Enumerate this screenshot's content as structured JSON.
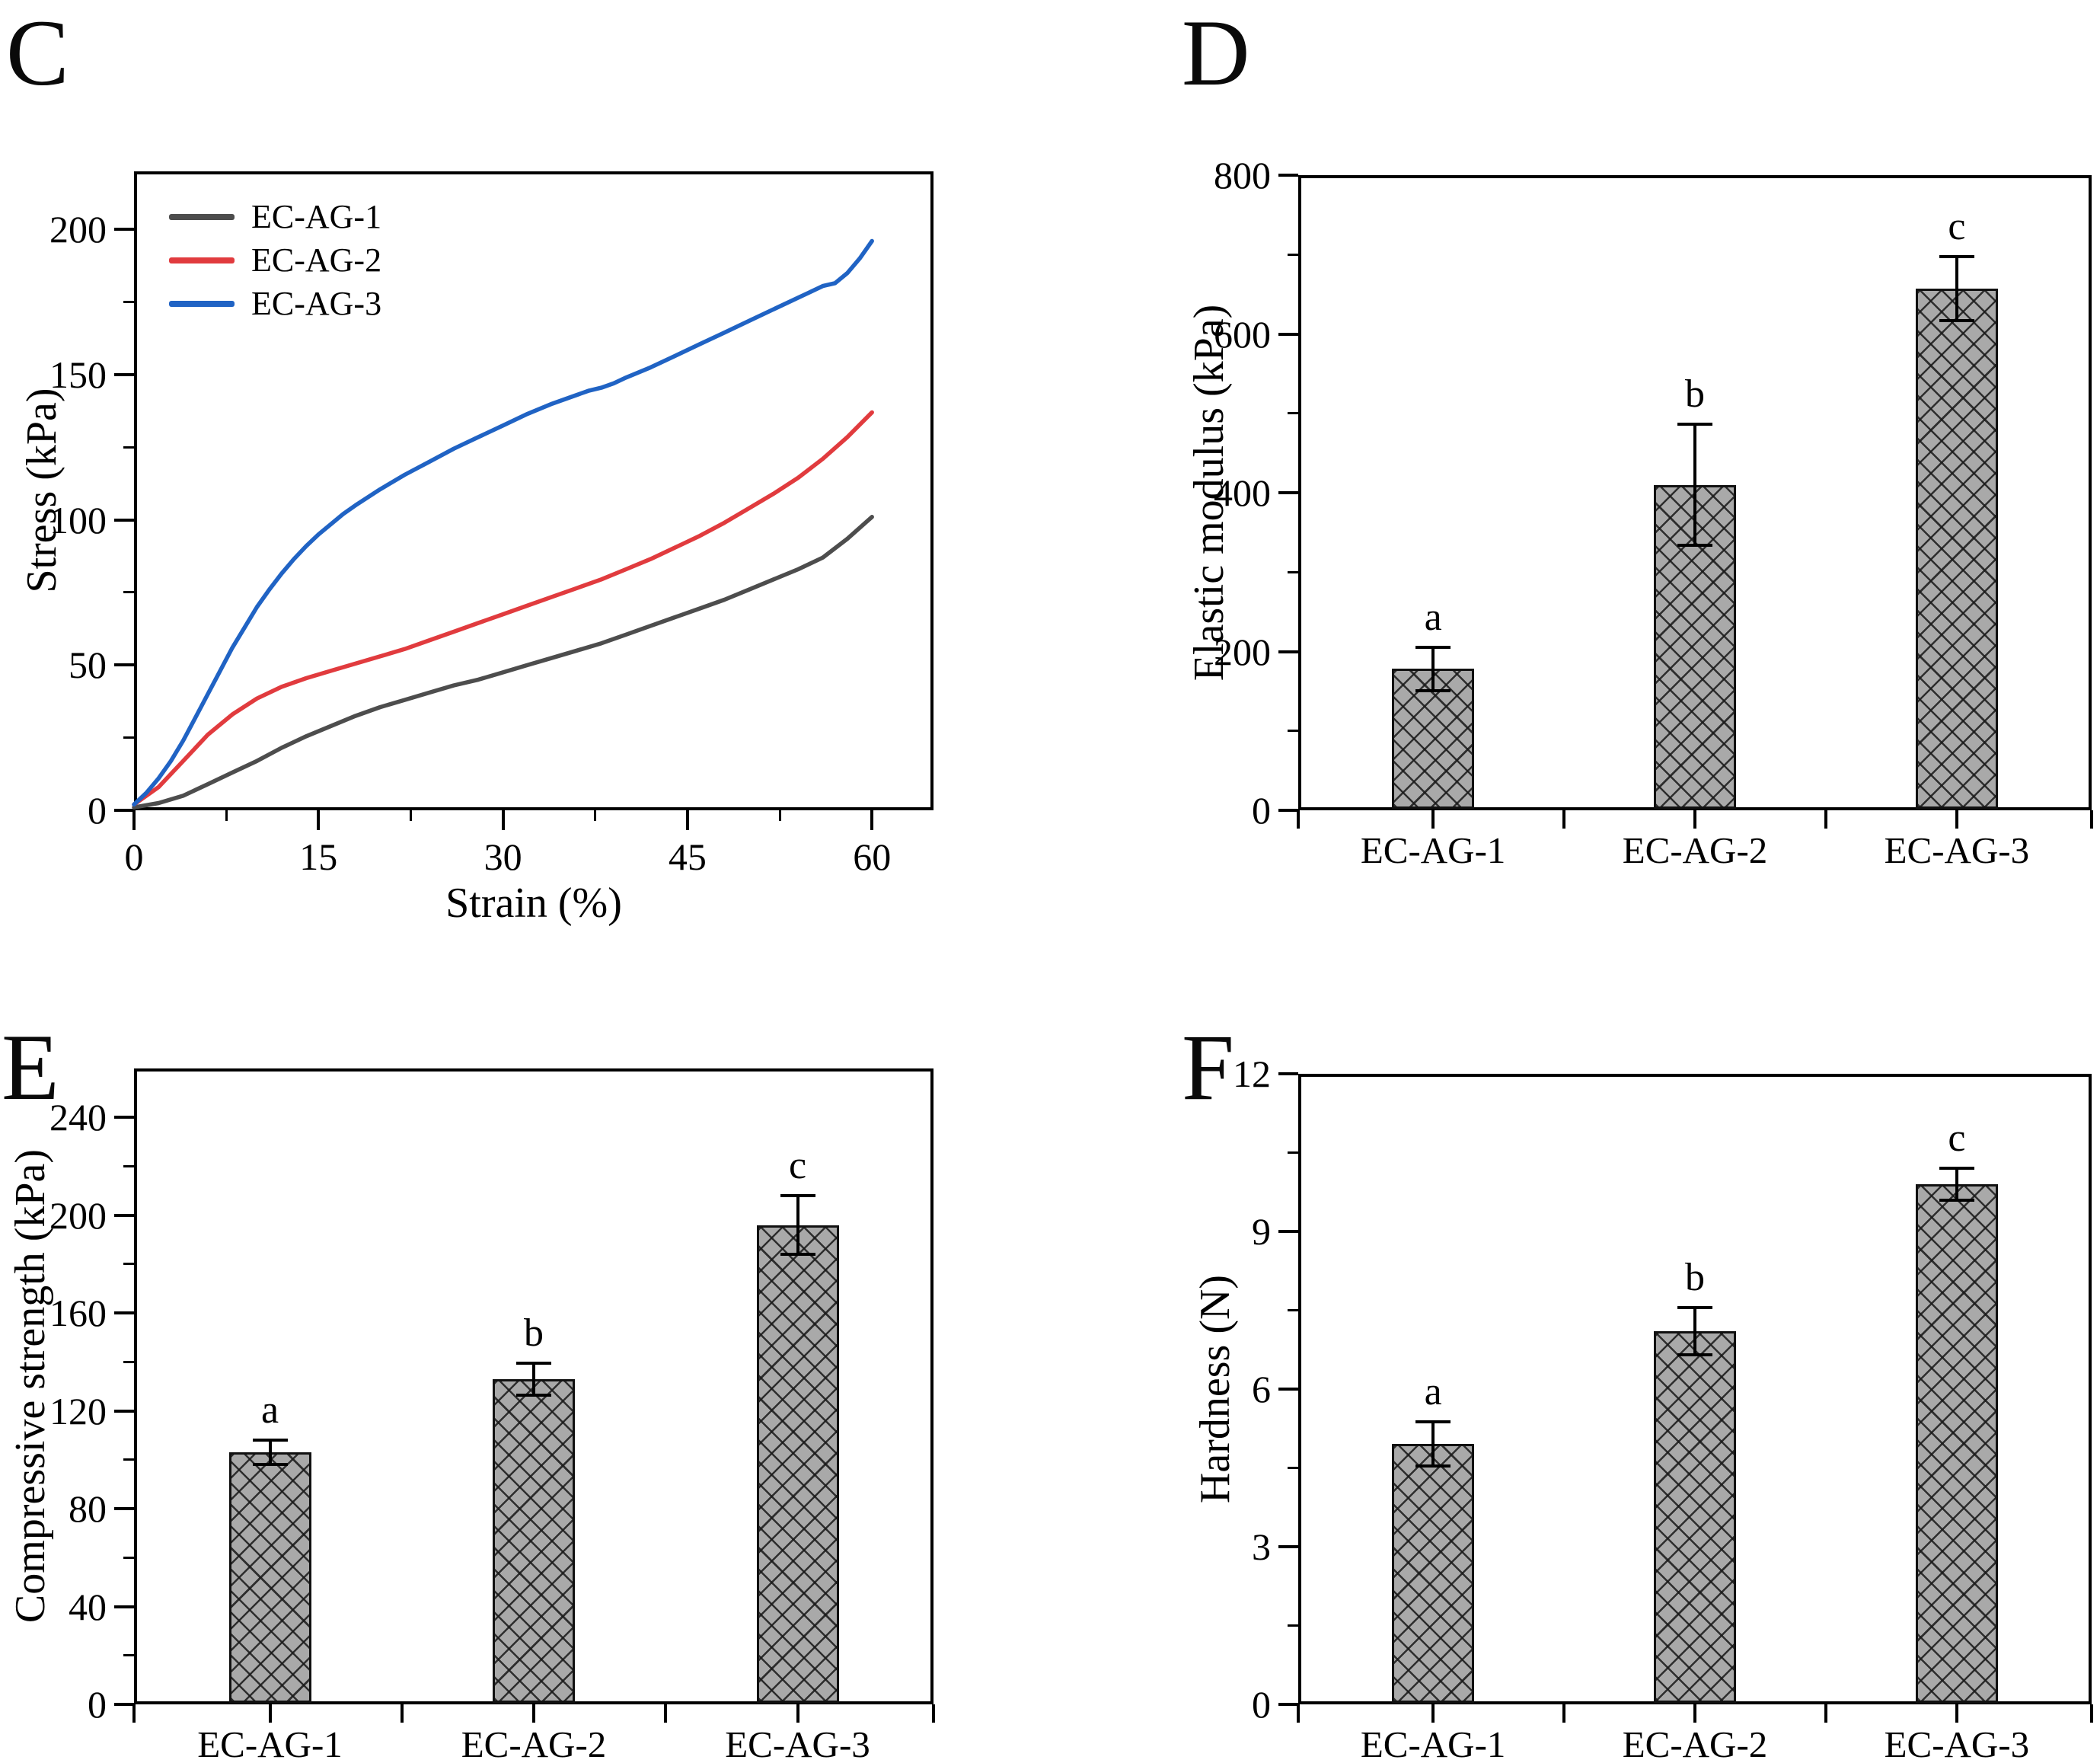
{
  "figure_title": "",
  "accent_colors": {
    "series_black": "#4d4d4d",
    "series_red": "#e13b3e",
    "series_blue": "#2063c4",
    "bar_fill": "#a9a9a9",
    "bar_hatch": "#191919",
    "axis": "#000000"
  },
  "chart_data": [
    {
      "id": "C",
      "panel_label": "C",
      "type": "line",
      "title": "",
      "xlabel": "Strain (%)",
      "ylabel": "Stress (kPa)",
      "xlim": [
        0,
        65
      ],
      "ylim": [
        0,
        220
      ],
      "x_ticks": [
        0,
        15,
        30,
        45,
        60
      ],
      "x_minor_step": 7.5,
      "y_ticks": [
        0,
        50,
        100,
        150,
        200
      ],
      "y_minor_step": 25,
      "grid": false,
      "legend_position": "top-left",
      "series": [
        {
          "name": "EC-AG-1",
          "color": "#4d4d4d",
          "points": [
            [
              0,
              1
            ],
            [
              2,
              2.5
            ],
            [
              4,
              5
            ],
            [
              6,
              9
            ],
            [
              8,
              13
            ],
            [
              10,
              17
            ],
            [
              12,
              21.5
            ],
            [
              14,
              25.5
            ],
            [
              16,
              29
            ],
            [
              18,
              32.5
            ],
            [
              20,
              35.5
            ],
            [
              22,
              38
            ],
            [
              24,
              40.5
            ],
            [
              26,
              43
            ],
            [
              28,
              45
            ],
            [
              30,
              47.5
            ],
            [
              32,
              50
            ],
            [
              34,
              52.5
            ],
            [
              36,
              55
            ],
            [
              38,
              57.5
            ],
            [
              40,
              60.5
            ],
            [
              42,
              63.5
            ],
            [
              44,
              66.5
            ],
            [
              46,
              69.5
            ],
            [
              48,
              72.5
            ],
            [
              50,
              76
            ],
            [
              52,
              79.5
            ],
            [
              54,
              83
            ],
            [
              56,
              87
            ],
            [
              58,
              93.5
            ],
            [
              60,
              101
            ]
          ]
        },
        {
          "name": "EC-AG-2",
          "color": "#e13b3e",
          "points": [
            [
              0,
              2
            ],
            [
              2,
              8
            ],
            [
              4,
              17
            ],
            [
              6,
              26
            ],
            [
              8,
              33
            ],
            [
              10,
              38.5
            ],
            [
              12,
              42.5
            ],
            [
              14,
              45.5
            ],
            [
              16,
              48
            ],
            [
              18,
              50.5
            ],
            [
              20,
              53
            ],
            [
              22,
              55.5
            ],
            [
              24,
              58.5
            ],
            [
              26,
              61.5
            ],
            [
              28,
              64.5
            ],
            [
              30,
              67.5
            ],
            [
              32,
              70.5
            ],
            [
              34,
              73.5
            ],
            [
              36,
              76.5
            ],
            [
              38,
              79.5
            ],
            [
              40,
              83
            ],
            [
              42,
              86.5
            ],
            [
              44,
              90.5
            ],
            [
              46,
              94.5
            ],
            [
              48,
              99
            ],
            [
              50,
              104
            ],
            [
              52,
              109
            ],
            [
              54,
              114.5
            ],
            [
              56,
              121
            ],
            [
              58,
              128.5
            ],
            [
              60,
              137
            ]
          ]
        },
        {
          "name": "EC-AG-3",
          "color": "#2063c4",
          "points": [
            [
              0,
              2
            ],
            [
              1,
              6
            ],
            [
              2,
              11
            ],
            [
              3,
              17
            ],
            [
              4,
              24
            ],
            [
              5,
              32
            ],
            [
              6,
              40
            ],
            [
              7,
              48
            ],
            [
              8,
              56
            ],
            [
              9,
              63
            ],
            [
              10,
              70
            ],
            [
              11,
              76
            ],
            [
              12,
              81.5
            ],
            [
              13,
              86.5
            ],
            [
              14,
              91
            ],
            [
              15,
              95
            ],
            [
              16,
              98.5
            ],
            [
              17,
              102
            ],
            [
              18,
              105
            ],
            [
              20,
              110.5
            ],
            [
              22,
              115.5
            ],
            [
              24,
              120
            ],
            [
              26,
              124.5
            ],
            [
              28,
              128.5
            ],
            [
              30,
              132.5
            ],
            [
              32,
              136.5
            ],
            [
              34,
              140
            ],
            [
              36,
              143
            ],
            [
              37,
              144.5
            ],
            [
              38,
              145.5
            ],
            [
              39,
              147
            ],
            [
              40,
              149
            ],
            [
              42,
              152.5
            ],
            [
              44,
              156.5
            ],
            [
              46,
              160.5
            ],
            [
              48,
              164.5
            ],
            [
              50,
              168.5
            ],
            [
              52,
              172.5
            ],
            [
              54,
              176.5
            ],
            [
              55,
              178.5
            ],
            [
              56,
              180.5
            ],
            [
              57,
              181.5
            ],
            [
              58,
              185
            ],
            [
              59,
              190
            ],
            [
              60,
              196
            ]
          ]
        }
      ]
    },
    {
      "id": "D",
      "panel_label": "D",
      "type": "bar",
      "title": "",
      "xlabel": "",
      "ylabel": "Elastic modulus (kPa)",
      "ylim": [
        0,
        800
      ],
      "y_ticks": [
        0,
        200,
        400,
        600,
        800
      ],
      "y_minor_step": 100,
      "categories": [
        "EC-AG-1",
        "EC-AG-2",
        "EC-AG-3"
      ],
      "values": [
        178,
        410,
        657
      ],
      "errors": [
        27,
        76,
        40
      ],
      "sig_letters": [
        "a",
        "b",
        "c"
      ]
    },
    {
      "id": "E",
      "panel_label": "E",
      "type": "bar",
      "title": "",
      "xlabel": "",
      "ylabel": "Compressive strength (kPa)",
      "ylim": [
        0,
        260
      ],
      "y_ticks": [
        0,
        40,
        80,
        120,
        160,
        200,
        240
      ],
      "y_minor_step": 20,
      "categories": [
        "EC-AG-1",
        "EC-AG-2",
        "EC-AG-3"
      ],
      "values": [
        103,
        133,
        196
      ],
      "errors": [
        5,
        6.5,
        12
      ],
      "sig_letters": [
        "a",
        "b",
        "c"
      ]
    },
    {
      "id": "F",
      "panel_label": "F",
      "type": "bar",
      "title": "",
      "xlabel": "",
      "ylabel": "Hardness (N)",
      "ylim": [
        0,
        12
      ],
      "y_ticks": [
        0,
        3,
        6,
        9,
        12
      ],
      "y_minor_step": 1.5,
      "categories": [
        "EC-AG-1",
        "EC-AG-2",
        "EC-AG-3"
      ],
      "values": [
        4.95,
        7.1,
        9.9
      ],
      "errors": [
        0.42,
        0.45,
        0.3
      ],
      "sig_letters": [
        "a",
        "b",
        "c"
      ]
    }
  ]
}
